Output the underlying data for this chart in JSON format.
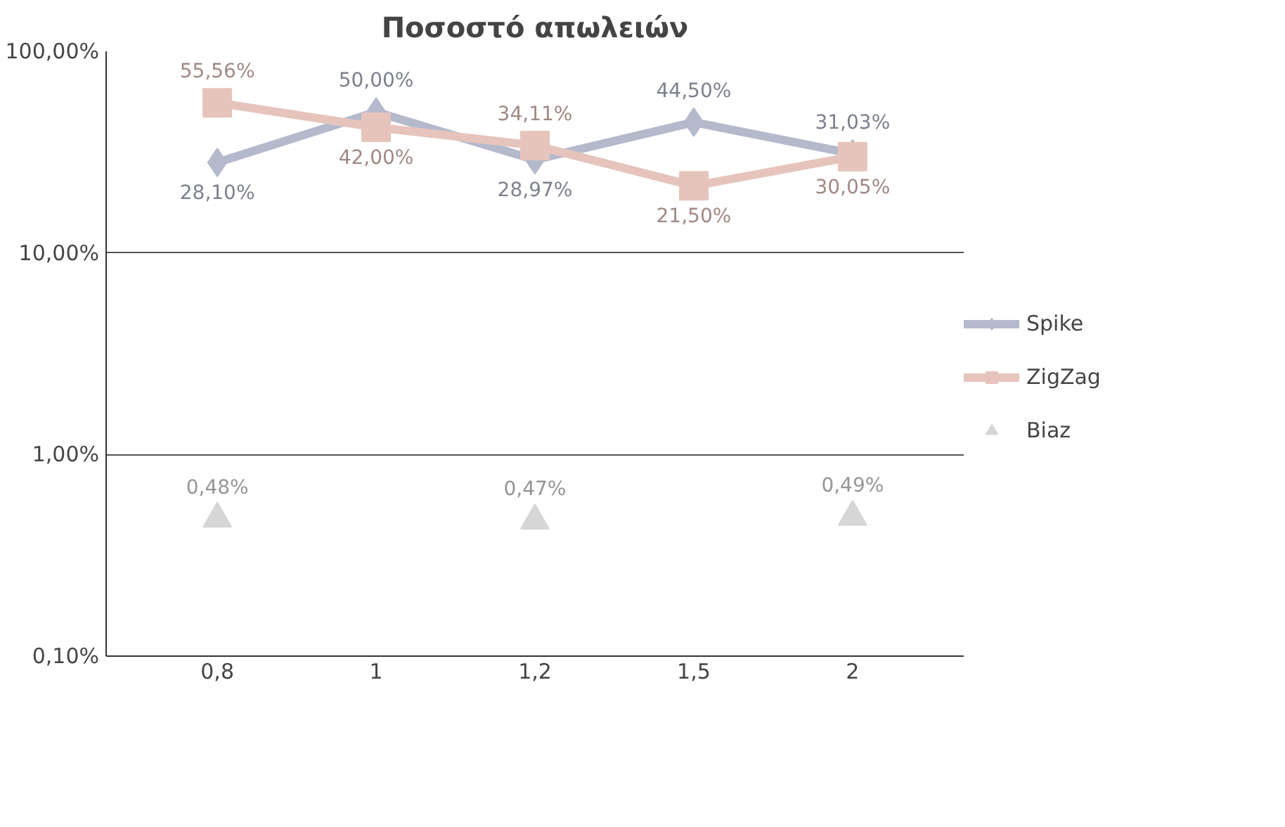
{
  "chart_data": {
    "type": "line",
    "title": "Ποσοστό απωλειών",
    "categories": [
      "0,8",
      "1",
      "1,2",
      "1,5",
      "2"
    ],
    "series": [
      {
        "name": "Spike",
        "color": "#b4b9cc",
        "marker": "diamond",
        "values": [
          28.1,
          50.0,
          28.97,
          44.5,
          31.03
        ],
        "value_labels": [
          "28,10%",
          "50,00%",
          "28,97%",
          "44,50%",
          "31,03%"
        ]
      },
      {
        "name": "ZigZag",
        "color": "#e6c4bc",
        "marker": "square",
        "values": [
          55.56,
          42.0,
          34.11,
          21.5,
          30.05
        ],
        "value_labels": [
          "55,56%",
          "42,00%",
          "34,11%",
          "21,50%",
          "30,05%"
        ]
      },
      {
        "name": "Biaz",
        "type": "scatter",
        "color": "#d6d6d6",
        "marker": "triangle",
        "values": [
          0.48,
          null,
          0.47,
          null,
          0.49
        ],
        "value_labels": [
          "0,48%",
          null,
          "0,47%",
          null,
          "0,49%"
        ]
      }
    ],
    "log": "y",
    "ylim": [
      0.1,
      100
    ],
    "yticks": [
      {
        "value": 0.1,
        "label": "0,10%"
      },
      {
        "value": 1,
        "label": "1,00%"
      },
      {
        "value": 10,
        "label": "10,00%"
      },
      {
        "value": 100,
        "label": "100,00%"
      }
    ],
    "grid": "y",
    "legend": "right"
  }
}
